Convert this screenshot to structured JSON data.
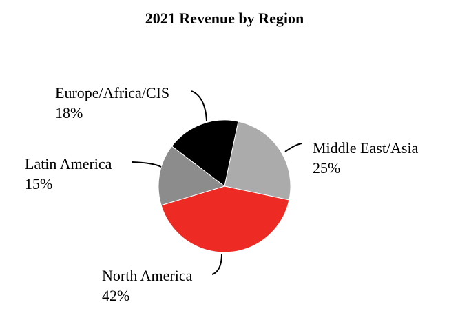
{
  "chart_data": {
    "type": "pie",
    "title": "2021 Revenue by Region",
    "slices": [
      {
        "label": "Middle East/Asia",
        "value": 25,
        "value_label": "25%",
        "color": "#ababab"
      },
      {
        "label": "North America",
        "value": 42,
        "value_label": "42%",
        "color": "#ee2a24"
      },
      {
        "label": "Latin America",
        "value": 15,
        "value_label": "15%",
        "color": "#8c8c8c"
      },
      {
        "label": "Europe/Africa/CIS",
        "value": 18,
        "value_label": "18%",
        "color": "#000000"
      }
    ],
    "label_style": "outside-with-leader-lines",
    "legend": "none",
    "slice_edge_color": "#ffffff"
  }
}
